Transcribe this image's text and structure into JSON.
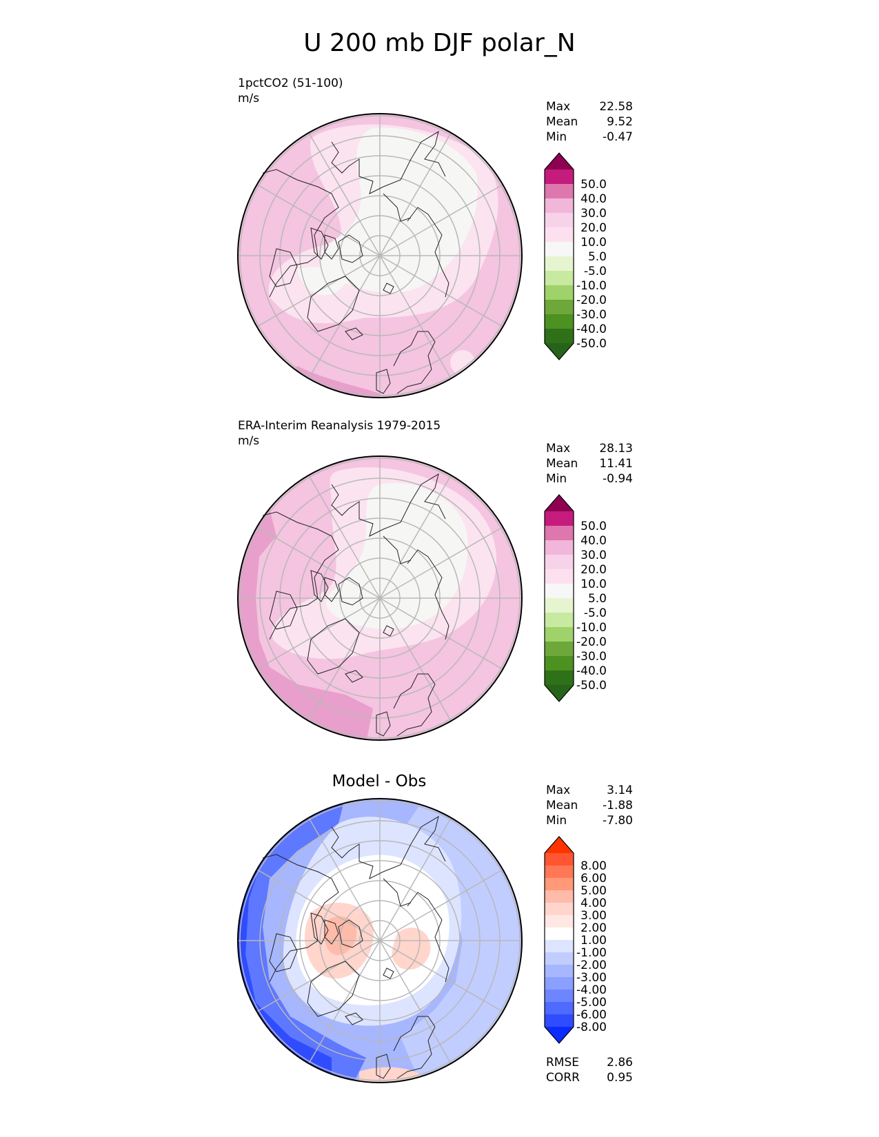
{
  "title": "U 200 mb DJF polar_N",
  "panels": [
    {
      "id": "test",
      "label": "1pctCO2 (51-100)",
      "units": "m/s",
      "stats": [
        [
          "Max",
          "22.58"
        ],
        [
          "Mean",
          "9.52"
        ],
        [
          "Min",
          "-0.47"
        ]
      ],
      "colorbar": {
        "ticks": [
          "50.0",
          "40.0",
          "30.0",
          "20.0",
          "10.0",
          "5.0",
          "-5.0",
          "-10.0",
          "-20.0",
          "-30.0",
          "-40.0",
          "-50.0"
        ],
        "colors": [
          "#8e0152",
          "#c51b7d",
          "#de77ae",
          "#f1b6da",
          "#f7d3ea",
          "#fde0ef",
          "#f7f7f7",
          "#e6f5d0",
          "#c7e9a0",
          "#9fd26a",
          "#6ea83a",
          "#4d9221",
          "#2e7119",
          "#276419"
        ]
      }
    },
    {
      "id": "ref",
      "label": "ERA-Interim Reanalysis 1979-2015",
      "units": "m/s",
      "stats": [
        [
          "Max",
          "28.13"
        ],
        [
          "Mean",
          "11.41"
        ],
        [
          "Min",
          "-0.94"
        ]
      ],
      "colorbar": {
        "ticks": [
          "50.0",
          "40.0",
          "30.0",
          "20.0",
          "10.0",
          "5.0",
          "-5.0",
          "-10.0",
          "-20.0",
          "-30.0",
          "-40.0",
          "-50.0"
        ],
        "colors": [
          "#8e0152",
          "#c51b7d",
          "#de77ae",
          "#f1b6da",
          "#f7d3ea",
          "#fde0ef",
          "#f7f7f7",
          "#e6f5d0",
          "#c7e9a0",
          "#9fd26a",
          "#6ea83a",
          "#4d9221",
          "#2e7119",
          "#276419"
        ]
      }
    },
    {
      "id": "diff",
      "title": "Model - Obs",
      "stats": [
        [
          "Max",
          "3.14"
        ],
        [
          "Mean",
          "-1.88"
        ],
        [
          "Min",
          "-7.80"
        ]
      ],
      "metrics": [
        [
          "RMSE",
          "2.86"
        ],
        [
          "CORR",
          "0.95"
        ]
      ],
      "colorbar": {
        "ticks": [
          "8.00",
          "6.00",
          "5.00",
          "4.00",
          "3.00",
          "2.00",
          "1.00",
          "-1.00",
          "-2.00",
          "-3.00",
          "-4.00",
          "-5.00",
          "-6.00",
          "-8.00"
        ],
        "colors": [
          "#ff3300",
          "#ff5533",
          "#ff7755",
          "#ff9977",
          "#ffbbaa",
          "#ffd5cc",
          "#ffe8e3",
          "#ffffff",
          "#dde4ff",
          "#c2cdff",
          "#a6b6ff",
          "#8a9fff",
          "#6d86ff",
          "#4f6aff",
          "#2f4cff",
          "#0a2cff"
        ]
      }
    }
  ],
  "chart_data": [
    {
      "type": "heatmap",
      "title": "1pctCO2 (51-100)",
      "units": "m/s",
      "projection": "polar stereographic, North",
      "levels": [
        -50,
        -40,
        -30,
        -20,
        -10,
        -5,
        5,
        10,
        20,
        30,
        40,
        50
      ],
      "extend": "both",
      "stats": {
        "max": 22.58,
        "mean": 9.52,
        "min": -0.47
      }
    },
    {
      "type": "heatmap",
      "title": "ERA-Interim Reanalysis 1979-2015",
      "units": "m/s",
      "projection": "polar stereographic, North",
      "levels": [
        -50,
        -40,
        -30,
        -20,
        -10,
        -5,
        5,
        10,
        20,
        30,
        40,
        50
      ],
      "extend": "both",
      "stats": {
        "max": 28.13,
        "mean": 11.41,
        "min": -0.94
      }
    },
    {
      "type": "heatmap",
      "title": "Model - Obs",
      "projection": "polar stereographic, North",
      "levels": [
        -8,
        -6,
        -5,
        -4,
        -3,
        -2,
        -1,
        1,
        2,
        3,
        4,
        5,
        6,
        8
      ],
      "extend": "both",
      "stats": {
        "max": 3.14,
        "mean": -1.88,
        "min": -7.8
      },
      "metrics": {
        "rmse": 2.86,
        "corr": 0.95
      }
    }
  ]
}
